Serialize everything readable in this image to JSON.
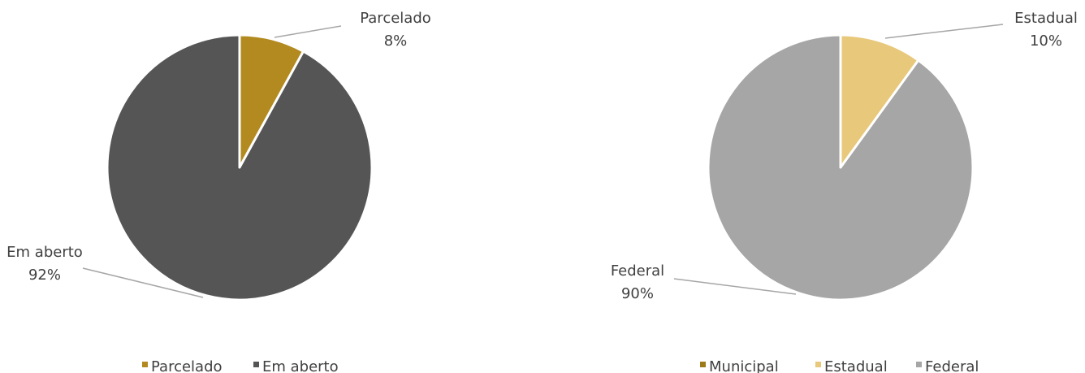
{
  "chart_data": [
    {
      "type": "pie",
      "categories": [
        "Parcelado",
        "Em aberto"
      ],
      "values": [
        8,
        92
      ],
      "value_labels": [
        "8%",
        "92%"
      ],
      "colors": [
        "#b38a1f",
        "#555555"
      ],
      "legend": "bottom"
    },
    {
      "type": "pie",
      "categories": [
        "Municipal",
        "Estadual",
        "Federal"
      ],
      "values": [
        0,
        10,
        90
      ],
      "value_labels": [
        null,
        "10%",
        "90%"
      ],
      "colors": [
        "#9c7a1c",
        "#e8c87a",
        "#a6a6a6"
      ],
      "legend": "bottom"
    }
  ]
}
